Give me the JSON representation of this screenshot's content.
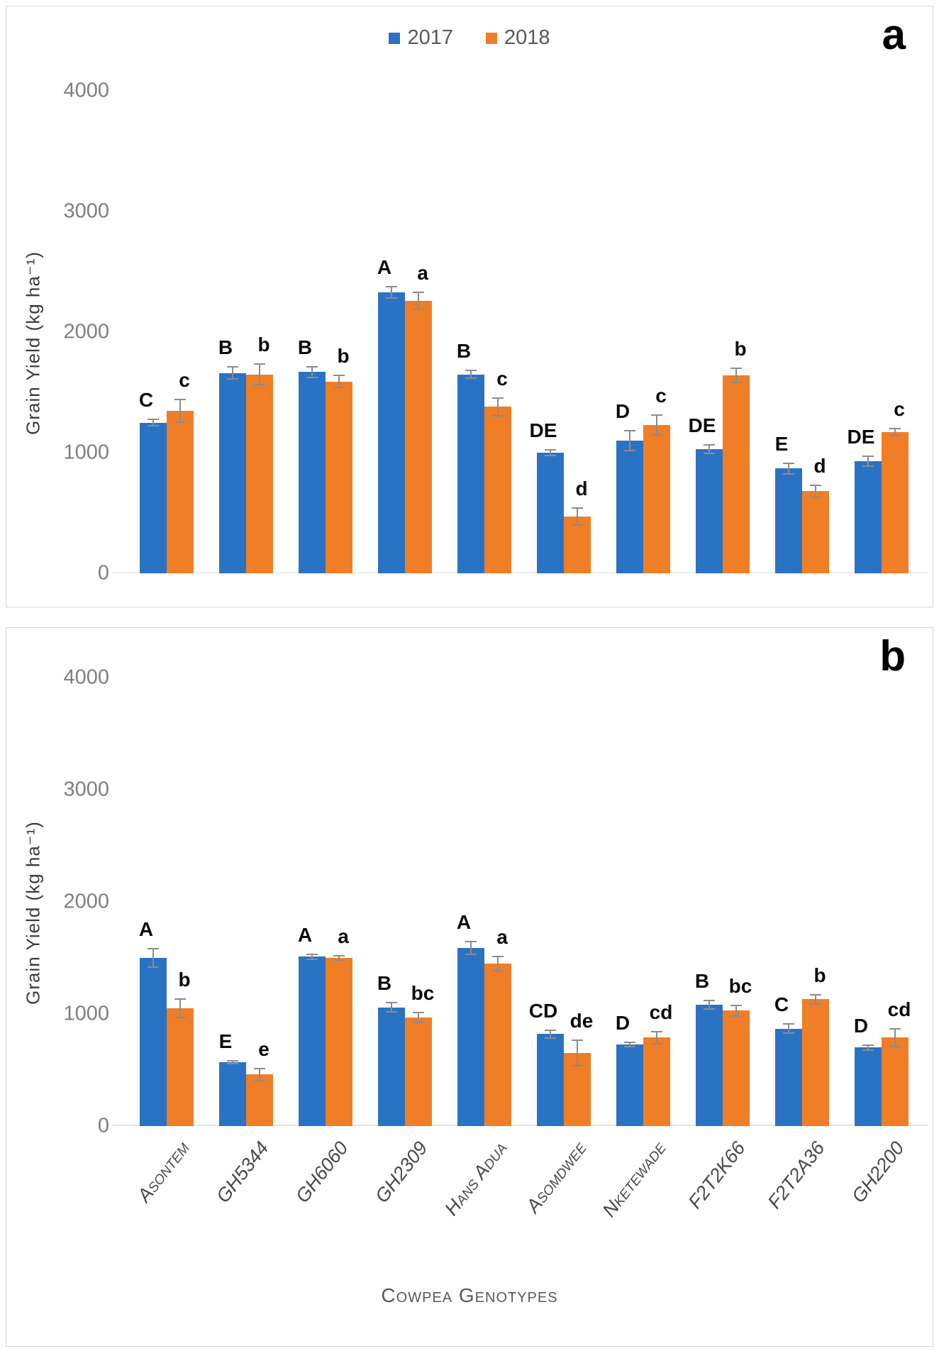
{
  "figure": {
    "background": "#ffffff",
    "xtitle": "Cowpea Genotypes"
  },
  "colors": {
    "bar_2017": "#2a73c4",
    "bar_2018": "#f07e27",
    "error_bar": "#8c8c8c",
    "tick_label": "#7f7f7f",
    "axis_title": "#3b3b3b",
    "category_label": "#4a4a4a",
    "panel_border": "#d5d5d5",
    "panel_letter": "#000000",
    "legend_text": "#595959"
  },
  "legend": {
    "items": [
      {
        "label": "2017",
        "color_key": "bar_2017"
      },
      {
        "label": "2018",
        "color_key": "bar_2018"
      }
    ]
  },
  "chart_data": [
    {
      "panel_label": "a",
      "type": "bar",
      "title": "",
      "ylabel": "Grain Yield (kg ha⁻¹)",
      "xlabel": "",
      "ylim": [
        0,
        4000
      ],
      "yticks": [
        0,
        1000,
        2000,
        3000,
        4000
      ],
      "grid": false,
      "legend_position": "top-center",
      "show_legend": true,
      "show_x_labels": false,
      "categories": [
        "Asontem",
        "GH5344",
        "GH6060",
        "GH2309",
        "Hans Adua",
        "Asomdwee",
        "Nketewade",
        "F2T2K66",
        "F2T2A36",
        "GH2200"
      ],
      "series": [
        {
          "name": "2017",
          "values": [
            1250,
            1660,
            1670,
            2330,
            1650,
            1000,
            1100,
            1030,
            870,
            930
          ],
          "errors": [
            30,
            55,
            50,
            55,
            40,
            30,
            90,
            40,
            50,
            45
          ],
          "letters": [
            "C",
            "B",
            "B",
            "A",
            "B",
            "DE",
            "D",
            "DE",
            "E",
            "DE"
          ]
        },
        {
          "name": "2018",
          "values": [
            1350,
            1650,
            1590,
            2260,
            1380,
            470,
            1230,
            1640,
            680,
            1170
          ],
          "errors": [
            100,
            90,
            55,
            75,
            80,
            75,
            90,
            65,
            55,
            35
          ],
          "letters": [
            "c",
            "b",
            "b",
            "a",
            "c",
            "d",
            "c",
            "b",
            "d",
            "c"
          ]
        }
      ]
    },
    {
      "panel_label": "b",
      "type": "bar",
      "title": "",
      "ylabel": "Grain Yield (kg ha⁻¹)",
      "xlabel": "Cowpea Genotypes",
      "ylim": [
        0,
        4000
      ],
      "yticks": [
        0,
        1000,
        2000,
        3000,
        4000
      ],
      "grid": false,
      "legend_position": "none",
      "show_legend": false,
      "show_x_labels": true,
      "categories": [
        "Asontem",
        "GH5344",
        "GH6060",
        "GH2309",
        "Hans Adua",
        "Asomdwee",
        "Nketewade",
        "F2T2K66",
        "F2T2A36",
        "GH2200"
      ],
      "series": [
        {
          "name": "2017",
          "values": [
            1500,
            570,
            1510,
            1060,
            1590,
            820,
            730,
            1080,
            870,
            700
          ],
          "errors": [
            90,
            20,
            30,
            45,
            65,
            40,
            25,
            45,
            50,
            30
          ],
          "letters": [
            "A",
            "E",
            "A",
            "B",
            "A",
            "CD",
            "D",
            "B",
            "C",
            "D"
          ]
        },
        {
          "name": "2018",
          "values": [
            1050,
            460,
            1500,
            970,
            1450,
            650,
            790,
            1030,
            1130,
            790
          ],
          "errors": [
            90,
            60,
            25,
            50,
            70,
            120,
            60,
            55,
            45,
            85
          ],
          "letters": [
            "b",
            "e",
            "a",
            "bc",
            "a",
            "de",
            "cd",
            "bc",
            "b",
            "cd"
          ]
        }
      ]
    }
  ]
}
